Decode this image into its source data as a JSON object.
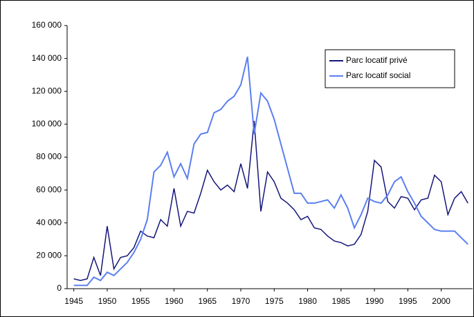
{
  "chart_data": {
    "type": "line",
    "x": [
      1945,
      1946,
      1947,
      1948,
      1949,
      1950,
      1951,
      1952,
      1953,
      1954,
      1955,
      1956,
      1957,
      1958,
      1959,
      1960,
      1961,
      1962,
      1963,
      1964,
      1965,
      1966,
      1967,
      1968,
      1969,
      1970,
      1971,
      1972,
      1973,
      1974,
      1975,
      1976,
      1977,
      1978,
      1979,
      1980,
      1981,
      1982,
      1983,
      1984,
      1985,
      1986,
      1987,
      1988,
      1989,
      1990,
      1991,
      1992,
      1993,
      1994,
      1995,
      1996,
      1997,
      1998,
      1999,
      2000,
      2001,
      2002,
      2003,
      2004
    ],
    "series": [
      {
        "name": "Parc locatif privé",
        "color": "#14147a",
        "values": [
          6000,
          5000,
          6000,
          19000,
          8000,
          38000,
          12000,
          19000,
          20000,
          25000,
          35000,
          32000,
          31000,
          42000,
          38000,
          61000,
          38000,
          47000,
          46000,
          58000,
          72000,
          65000,
          60000,
          63000,
          59000,
          76000,
          61000,
          102000,
          47000,
          71000,
          65000,
          55000,
          52000,
          48000,
          42000,
          44000,
          37000,
          36000,
          32000,
          29000,
          28000,
          26000,
          27000,
          33000,
          47000,
          78000,
          74000,
          53000,
          49000,
          56000,
          55000,
          48000,
          54000,
          55000,
          69000,
          65000,
          45000,
          55000,
          59000,
          52000
        ]
      },
      {
        "name": "Parc locatif social",
        "color": "#5a7ff0",
        "values": [
          2000,
          2000,
          2000,
          7000,
          5000,
          10000,
          8000,
          12000,
          16000,
          22000,
          30000,
          42000,
          71000,
          75000,
          83000,
          68000,
          76000,
          67000,
          88000,
          94000,
          95000,
          107000,
          109000,
          114000,
          117000,
          124000,
          141000,
          94000,
          119000,
          114000,
          103000,
          88000,
          73000,
          58000,
          58000,
          52000,
          52000,
          53000,
          54000,
          49000,
          57000,
          49000,
          37000,
          45000,
          55000,
          53000,
          52000,
          57000,
          65000,
          68000,
          59000,
          52000,
          44000,
          40000,
          36000,
          35000,
          35000,
          35000,
          31000,
          27000
        ]
      }
    ],
    "xlim": [
      1944,
      2004.7
    ],
    "xticks": [
      1945,
      1950,
      1955,
      1960,
      1965,
      1970,
      1975,
      1980,
      1985,
      1990,
      1995,
      2000
    ],
    "ylim": [
      0,
      160000
    ],
    "yticks": [
      0,
      {
        "value": 20000,
        "label": "20 000"
      },
      {
        "value": 40000,
        "label": "40 000"
      },
      {
        "value": 60000,
        "label": "60 000"
      },
      {
        "value": 80000,
        "label": "80 000"
      },
      {
        "value": 100000,
        "label": "100 000"
      },
      {
        "value": 120000,
        "label": "120 000"
      },
      {
        "value": 140000,
        "label": "140 000"
      },
      {
        "value": 160000,
        "label": "160 000"
      }
    ],
    "legend": "upper right"
  }
}
